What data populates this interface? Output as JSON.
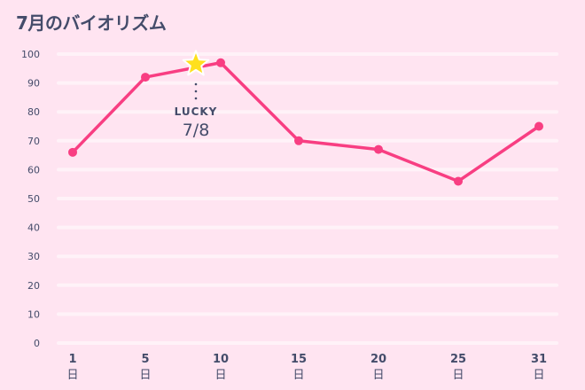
{
  "title": "7月のバイオリズム",
  "colors": {
    "background": "#ffe4f1",
    "gridline": "#fff2f8",
    "line": "#f83e82",
    "star": "#ffe01e",
    "text": "#444c6a"
  },
  "annotation": {
    "icon": "star-icon",
    "label": "LUCKY",
    "date": "7/8",
    "day": 8,
    "value": 96.5
  },
  "chart_data": {
    "type": "line",
    "title": "7月のバイオリズム",
    "xlabel": "",
    "ylabel": "",
    "categories": [
      "1",
      "5",
      "10",
      "15",
      "20",
      "25",
      "31"
    ],
    "x_unit": "日",
    "series": [
      {
        "name": "バイオリズム",
        "values": [
          66,
          92,
          97,
          70,
          67,
          56,
          75
        ]
      }
    ],
    "yticks": [
      "0",
      "10",
      "20",
      "30",
      "40",
      "50",
      "60",
      "70",
      "80",
      "90",
      "100"
    ],
    "ylim": [
      0,
      100
    ],
    "grid": true,
    "legend": "none",
    "annotations": [
      {
        "type": "star-marker",
        "x_day": 8,
        "y": 96.5,
        "label": "LUCKY",
        "text": "7/8"
      }
    ]
  }
}
